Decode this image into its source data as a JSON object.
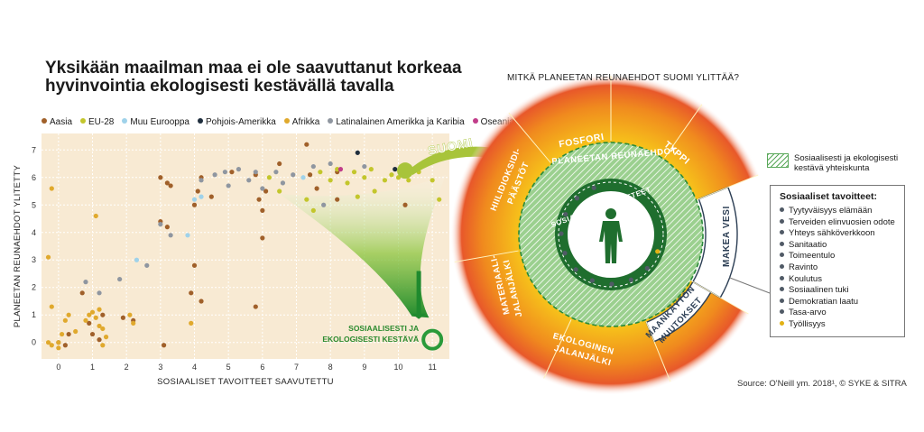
{
  "header": {
    "title_line1": "Yksikään maailman maa ei ole saavuttanut korkeaa",
    "title_line2": "hyvinvointia ekologisesti kestävällä tavalla"
  },
  "legend": [
    {
      "label": "Aasia",
      "color": "#a0602a"
    },
    {
      "label": "EU-28",
      "color": "#c3c62c"
    },
    {
      "label": "Muu Eurooppa",
      "color": "#9fd2ea"
    },
    {
      "label": "Pohjois-Amerikka",
      "color": "#1f2e3d"
    },
    {
      "label": "Afrikka",
      "color": "#e0a92d"
    },
    {
      "label": "Latinalainen Amerikka ja Karibia",
      "color": "#8f96a0"
    },
    {
      "label": "Oseania",
      "color": "#c13d8a"
    }
  ],
  "chart_data": {
    "type": "scatter",
    "xlabel": "SOSIAALISET TAVOITTEET SAAVUTETTU",
    "ylabel": "PLANEETAN REUNAEHDOT YLITETTY",
    "xlim": [
      -0.5,
      11.5
    ],
    "ylim": [
      -0.6,
      7.6
    ],
    "x_ticks": [
      "0",
      "1",
      "2",
      "3",
      "4",
      "5",
      "6",
      "7",
      "8",
      "9",
      "10",
      "11"
    ],
    "y_ticks": [
      "0",
      "1",
      "2",
      "3",
      "4",
      "5",
      "6",
      "7"
    ],
    "grid": true,
    "series": [
      {
        "name": "Aasia",
        "color": "#a0602a",
        "points": [
          [
            0,
            0
          ],
          [
            0.2,
            -0.1
          ],
          [
            0.3,
            0.3
          ],
          [
            0.7,
            1.8
          ],
          [
            0.9,
            0.7
          ],
          [
            1.0,
            0.3
          ],
          [
            1.2,
            0.1
          ],
          [
            1.3,
            1.0
          ],
          [
            1.9,
            0.9
          ],
          [
            2.2,
            0.8
          ],
          [
            3.0,
            6.0
          ],
          [
            3.2,
            5.8
          ],
          [
            3.3,
            5.7
          ],
          [
            3.2,
            4.2
          ],
          [
            3.0,
            4.4
          ],
          [
            3.1,
            -0.1
          ],
          [
            3.9,
            1.8
          ],
          [
            4.0,
            2.8
          ],
          [
            4.2,
            1.5
          ],
          [
            4.0,
            5.0
          ],
          [
            4.1,
            5.5
          ],
          [
            4.2,
            6.0
          ],
          [
            4.5,
            5.3
          ],
          [
            5.1,
            6.2
          ],
          [
            5.8,
            6.1
          ],
          [
            5.9,
            5.2
          ],
          [
            6.0,
            3.8
          ],
          [
            6.0,
            4.8
          ],
          [
            6.1,
            5.5
          ],
          [
            5.8,
            1.3
          ],
          [
            6.5,
            6.5
          ],
          [
            7.3,
            7.2
          ],
          [
            7.4,
            6.1
          ],
          [
            7.6,
            5.6
          ],
          [
            8.2,
            6.2
          ],
          [
            8.2,
            5.2
          ],
          [
            10.2,
            5.0
          ]
        ]
      },
      {
        "name": "EU-28",
        "color": "#c3c62c",
        "points": [
          [
            6.2,
            6.0
          ],
          [
            6.5,
            5.5
          ],
          [
            7.3,
            5.2
          ],
          [
            7.5,
            4.8
          ],
          [
            7.7,
            6.2
          ],
          [
            8.0,
            5.9
          ],
          [
            8.2,
            6.3
          ],
          [
            8.5,
            5.8
          ],
          [
            8.7,
            6.2
          ],
          [
            9.0,
            6.0
          ],
          [
            9.2,
            6.3
          ],
          [
            9.3,
            5.5
          ],
          [
            9.6,
            5.9
          ],
          [
            9.8,
            6.1
          ],
          [
            10.0,
            6.0
          ],
          [
            10.1,
            6.3
          ],
          [
            10.3,
            5.9
          ],
          [
            10.6,
            6.2
          ],
          [
            11.0,
            5.9
          ],
          [
            11.2,
            5.2
          ],
          [
            8.8,
            5.3
          ]
        ]
      },
      {
        "name": "Muu Eurooppa",
        "color": "#9fd2ea",
        "points": [
          [
            2.3,
            3.0
          ],
          [
            3.8,
            3.9
          ],
          [
            4.0,
            5.2
          ],
          [
            4.2,
            5.3
          ],
          [
            7.2,
            6.0
          ]
        ]
      },
      {
        "name": "Pohjois-Amerikka",
        "color": "#1f2e3d",
        "points": [
          [
            8.8,
            6.9
          ],
          [
            9.9,
            6.3
          ]
        ]
      },
      {
        "name": "Afrikka",
        "color": "#e0a92d",
        "points": [
          [
            -0.3,
            0.0
          ],
          [
            -0.2,
            -0.1
          ],
          [
            -0.2,
            1.3
          ],
          [
            0.0,
            0.0
          ],
          [
            0.1,
            0.3
          ],
          [
            0.2,
            0.8
          ],
          [
            0.3,
            1.0
          ],
          [
            0.5,
            0.4
          ],
          [
            0.8,
            0.8
          ],
          [
            0.9,
            1.0
          ],
          [
            1.0,
            1.1
          ],
          [
            1.1,
            0.9
          ],
          [
            1.2,
            1.2
          ],
          [
            1.2,
            0.6
          ],
          [
            1.3,
            0.5
          ],
          [
            1.4,
            0.2
          ],
          [
            2.1,
            1.0
          ],
          [
            2.2,
            0.7
          ],
          [
            -0.3,
            3.1
          ],
          [
            -0.2,
            5.6
          ],
          [
            1.1,
            4.6
          ],
          [
            3.9,
            0.7
          ],
          [
            0.0,
            -0.2
          ],
          [
            1.3,
            -0.1
          ]
        ]
      },
      {
        "name": "Latinalainen Amerikka ja Karibia",
        "color": "#8f96a0",
        "points": [
          [
            0.8,
            2.2
          ],
          [
            1.2,
            1.8
          ],
          [
            1.8,
            2.3
          ],
          [
            2.6,
            2.8
          ],
          [
            3.0,
            4.3
          ],
          [
            3.3,
            3.9
          ],
          [
            4.2,
            5.9
          ],
          [
            4.6,
            6.1
          ],
          [
            4.9,
            6.2
          ],
          [
            5.0,
            5.7
          ],
          [
            5.3,
            6.3
          ],
          [
            5.6,
            5.9
          ],
          [
            5.8,
            6.2
          ],
          [
            6.0,
            5.6
          ],
          [
            6.4,
            6.2
          ],
          [
            6.6,
            5.8
          ],
          [
            6.9,
            6.1
          ],
          [
            7.5,
            6.4
          ],
          [
            7.8,
            5.0
          ],
          [
            8.0,
            6.5
          ],
          [
            9.0,
            6.4
          ]
        ]
      },
      {
        "name": "Oseania",
        "color": "#c13d8a",
        "points": [
          [
            8.3,
            6.3
          ]
        ]
      }
    ],
    "annotations": {
      "suomi_label": "SUOMI",
      "target_label_line1": "SOSIAALISESTI JA",
      "target_label_line2": "EKOLOGISESTI KESTÄVÄ"
    }
  },
  "wheel": {
    "question": "MITKÄ PLANEETAN REUNAEHDOT SUOMI YLITTÄÄ?",
    "outer_segments": [
      "FOSFORI",
      "TYPPI",
      "HIILIDIOKSIDI-",
      "PÄÄSTÖT",
      "MATERIAALI-",
      "JALANJÄLKI",
      "EKOLOGINEN",
      "JALANJÄLKI"
    ],
    "exceeded_not": [
      "MAKEA VESI",
      "MAANKÄYTÖN",
      "MUUTOKSET"
    ],
    "boundary_ring_label": "PLANEETAN REUNAEHDOT",
    "social_ring_label": "SOSIAALISET TAVOITTEET",
    "colors": {
      "outer_orange": "#e8622a",
      "mid_yellow": "#f5c518",
      "green": "#3f9a3f",
      "dark_green": "#1f6e2e",
      "navy": "#2d3f55"
    }
  },
  "key": {
    "swatch_label": "Sosiaalisesti ja ekologisesti kestävä yhteiskunta",
    "goals_title": "Sosiaaliset tavoitteet:",
    "goals": [
      "Tyytyväisyys elämään",
      "Terveiden elinvuosien odote",
      "Yhteys sähköverkkoon",
      "Sanitaatio",
      "Toimeentulo",
      "Ravinto",
      "Koulutus",
      "Sosiaalinen tuki",
      "Demokratian laatu",
      "Tasa-arvo",
      "Työllisyys"
    ]
  },
  "source": "Source: O'Neill ym. 2018¹, © SYKE & SITRA"
}
